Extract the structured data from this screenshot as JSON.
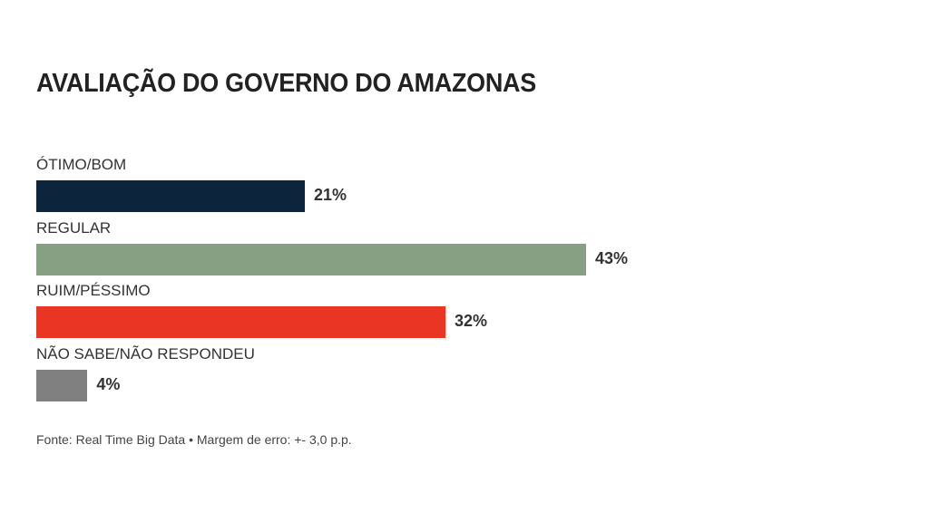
{
  "chart_data": {
    "type": "bar",
    "orientation": "horizontal",
    "title": "AVALIAÇÃO DO GOVERNO DO AMAZONAS",
    "categories": [
      "ÓTIMO/BOM",
      "REGULAR",
      "RUIM/PÉSSIMO",
      "NÃO SABE/NÃO RESPONDEU"
    ],
    "values": [
      21,
      43,
      32,
      4
    ],
    "value_labels": [
      "21%",
      "43%",
      "32%",
      "4%"
    ],
    "colors": [
      "#0c253d",
      "#87a084",
      "#e83524",
      "#808080"
    ],
    "xlabel": "",
    "ylabel": "",
    "xlim": [
      0,
      43
    ],
    "grid": false,
    "legend": "none",
    "source": "Fonte: Real Time Big Data • Margem de erro: +- 3,0 p.p."
  }
}
